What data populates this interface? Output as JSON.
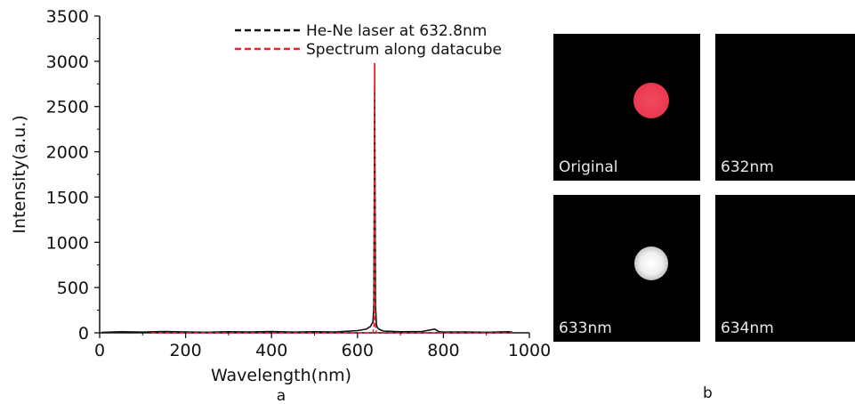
{
  "panel_a_label": "a",
  "panel_b_label": "b",
  "chart_data": {
    "type": "line",
    "xlabel": "Wavelength(nm)",
    "ylabel": "Intensity(a.u.)",
    "xlim": [
      0,
      1000
    ],
    "ylim": [
      0,
      3500
    ],
    "xticks": [
      0,
      200,
      400,
      600,
      800,
      1000
    ],
    "yticks": [
      0,
      500,
      1000,
      1500,
      2000,
      2500,
      3000,
      3500
    ],
    "legend_position": "top-right",
    "series": [
      {
        "name": "He-Ne laser at 632.8nm",
        "color": "#111111",
        "style": "solid",
        "x": [
          5,
          50,
          100,
          150,
          200,
          250,
          300,
          350,
          400,
          450,
          500,
          550,
          600,
          620,
          630,
          636,
          638,
          640,
          642,
          644,
          646,
          650,
          660,
          700,
          750,
          780,
          790,
          800,
          850,
          900,
          950,
          960
        ],
        "y": [
          5,
          12,
          8,
          15,
          10,
          6,
          12,
          9,
          14,
          8,
          12,
          10,
          25,
          40,
          70,
          120,
          300,
          2650,
          300,
          90,
          60,
          40,
          20,
          12,
          15,
          40,
          12,
          8,
          10,
          6,
          12,
          8
        ]
      },
      {
        "name": "Spectrum along datacube",
        "color": "#e8222e",
        "style": "dashed",
        "x": [
          120,
          300,
          500,
          620,
          636,
          639,
          640,
          641,
          644,
          660,
          800,
          960
        ],
        "y": [
          0,
          0,
          0,
          0,
          0,
          100,
          2680,
          100,
          0,
          0,
          0,
          0
        ]
      }
    ],
    "spike_top": {
      "x": 640,
      "y": 2980,
      "color": "#e8222e"
    }
  },
  "panels": [
    {
      "label": "Original",
      "spot": {
        "present": true,
        "color": "#e8384f",
        "style": "red-disk"
      }
    },
    {
      "label": "632nm",
      "spot": {
        "present": false
      }
    },
    {
      "label": "633nm",
      "spot": {
        "present": true,
        "color": "#ffffff",
        "style": "white-glow"
      }
    },
    {
      "label": "634nm",
      "spot": {
        "present": false
      }
    }
  ]
}
